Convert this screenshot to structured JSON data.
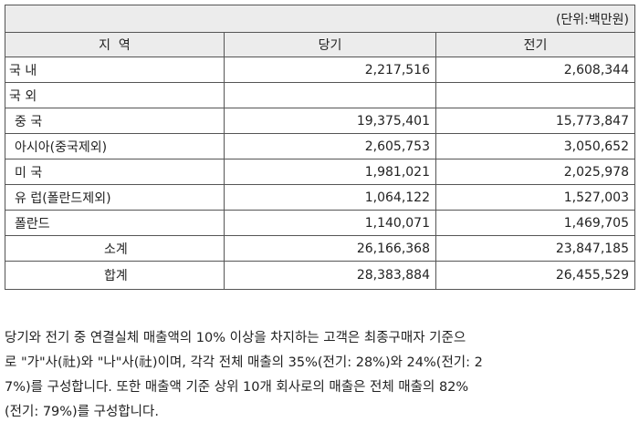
{
  "table": {
    "unit": "(단위:백만원)",
    "header": [
      "지  역",
      "당기",
      "전기"
    ],
    "rows": [
      {
        "label": "국 내",
        "current": "2,217,516",
        "prior": "2,608,344"
      },
      {
        "label": "국 외"
      },
      {
        "label": "중 국",
        "current": "19,375,401",
        "prior": "15,773,847"
      },
      {
        "label": "아시아(중국제외)",
        "current": "2,605,753",
        "prior": "3,050,652"
      },
      {
        "label": "미 국",
        "current": "1,981,021",
        "prior": "2,025,978"
      },
      {
        "label": "유 럽(폴란드제외)",
        "current": "1,064,122",
        "prior": "1,527,003"
      },
      {
        "label": "폴란드",
        "current": "1,140,071",
        "prior": "1,469,705"
      },
      {
        "label": "소계",
        "current": "26,166,368",
        "prior": "23,847,185"
      },
      {
        "label": "합계",
        "current": "28,383,884",
        "prior": "26,455,529"
      }
    ]
  },
  "note": [
    "당기와 전기 중 연결실체 매출액의 10% 이상을 차지하는 고객은 최종구매자 기준으",
    "로 \"가\"사(社)와 \"나\"사(社)이며, 각각 전체 매출의 35%(전기: 28%)와 24%(전기: 2",
    "7%)를 구성합니다. 또한 매출액 기준 상위 10개 회사로의 매출은 전체 매출의 82%",
    "(전기: 79%)를 구성합니다."
  ]
}
